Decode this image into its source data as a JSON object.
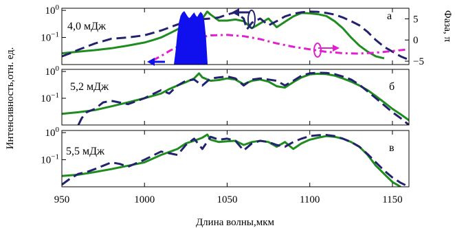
{
  "chart_data": {
    "type": "line",
    "xlabel": "Длина волны,мкм",
    "ylabel": "Интенсивность,отн. ед.",
    "xlim": [
      950,
      1160
    ],
    "x_ticks": [
      "950",
      "1000",
      "1050",
      "1100",
      "1150"
    ],
    "x_tick_values": [
      950,
      1000,
      1050,
      1100,
      1150
    ],
    "y_scale": "log",
    "ylim": [
      0.01,
      1.2
    ],
    "y_ticks": [
      "10^0",
      "10^-1"
    ],
    "y_tick_values": [
      1,
      0.1
    ],
    "colors": {
      "green": "#1e8c1e",
      "navy": "#22226e",
      "magenta": "#e020d0",
      "blue": "#1010ee"
    },
    "panels": [
      {
        "energy_label": "4,0 мДж",
        "panel_letter": "а",
        "right_axis": {
          "label": "Фаза, π",
          "ylim": [
            -5.8,
            7.5
          ],
          "ticks": [
            "5",
            "0",
            "−5"
          ],
          "tick_values": [
            5,
            0,
            -5
          ]
        },
        "series": [
          {
            "style": "solid",
            "color": "#1e8c1e",
            "x": [
              950,
              960,
              970,
              980,
              990,
              1000,
              1005,
              1010,
              1015,
              1020,
              1025,
              1030,
              1035,
              1038,
              1040,
              1045,
              1050,
              1055,
              1060,
              1065,
              1070,
              1075,
              1080,
              1085,
              1090,
              1095,
              1100,
              1105,
              1110,
              1115,
              1120,
              1125,
              1130,
              1135,
              1140,
              1145
            ],
            "y": [
              0.026,
              0.03,
              0.034,
              0.04,
              0.05,
              0.065,
              0.08,
              0.1,
              0.14,
              0.2,
              0.3,
              0.4,
              0.5,
              0.9,
              0.7,
              0.42,
              0.42,
              0.46,
              0.4,
              0.22,
              0.33,
              0.5,
              0.24,
              0.38,
              0.6,
              0.8,
              0.78,
              0.72,
              0.62,
              0.4,
              0.22,
              0.1,
              0.05,
              0.03,
              0.02,
              0.017
            ]
          },
          {
            "style": "dashed",
            "color": "#22226e",
            "x": [
              950,
              955,
              960,
              970,
              980,
              990,
              1000,
              1010,
              1020,
              1030,
              1040,
              1045,
              1050,
              1055,
              1060,
              1062,
              1065,
              1070,
              1075,
              1080,
              1085,
              1090,
              1095,
              1100,
              1105,
              1110,
              1115,
              1120,
              1125,
              1130,
              1135,
              1140,
              1145,
              1150,
              1155,
              1160
            ],
            "y": [
              0.02,
              0.026,
              0.035,
              0.06,
              0.09,
              0.1,
              0.12,
              0.18,
              0.3,
              0.45,
              0.5,
              0.55,
              0.7,
              0.85,
              0.5,
              0.2,
              0.35,
              0.5,
              0.28,
              0.4,
              0.6,
              0.75,
              0.85,
              0.9,
              0.88,
              0.8,
              0.7,
              0.55,
              0.4,
              0.28,
              0.16,
              0.08,
              0.045,
              0.03,
              0.02,
              0.015
            ]
          },
          {
            "style": "dashdot",
            "color": "#e020d0",
            "axis": "right",
            "x": [
              1005,
              1010,
              1015,
              1020,
              1025,
              1030,
              1035,
              1040,
              1050,
              1060,
              1070,
              1080,
              1090,
              1100,
              1110,
              1120,
              1130,
              1140,
              1150,
              1160
            ],
            "y": [
              -4.8,
              -3.8,
              -2.6,
              -1.6,
              -0.6,
              0.2,
              0.7,
              1.1,
              1.2,
              0.9,
              0.2,
              -0.8,
              -1.6,
              -2.2,
              -2.8,
              -3.1,
              -3.2,
              -3.0,
              -2.6,
              -2.2
            ]
          },
          {
            "style": "filled",
            "color": "#1010ee",
            "x": [
              1018,
              1019,
              1020,
              1021,
              1022,
              1023,
              1024,
              1025,
              1026,
              1027,
              1028,
              1029,
              1030,
              1031,
              1032,
              1033,
              1034,
              1035,
              1036,
              1037,
              1038
            ],
            "y": [
              0.01,
              0.03,
              0.12,
              0.35,
              0.62,
              0.8,
              0.9,
              0.72,
              0.58,
              0.5,
              0.56,
              0.68,
              0.8,
              0.62,
              0.55,
              0.7,
              0.85,
              0.72,
              0.4,
              0.1,
              0.01
            ]
          }
        ]
      },
      {
        "energy_label": "5,2 мДж",
        "panel_letter": "б",
        "series": [
          {
            "style": "solid",
            "color": "#1e8c1e",
            "x": [
              950,
              960,
              970,
              980,
              990,
              1000,
              1010,
              1015,
              1020,
              1025,
              1030,
              1033,
              1035,
              1040,
              1045,
              1050,
              1055,
              1060,
              1065,
              1070,
              1075,
              1080,
              1085,
              1090,
              1095,
              1100,
              1105,
              1110,
              1115,
              1120,
              1125,
              1130,
              1135,
              1140,
              1145,
              1150,
              1155,
              1160
            ],
            "y": [
              0.026,
              0.03,
              0.036,
              0.05,
              0.07,
              0.1,
              0.15,
              0.22,
              0.3,
              0.4,
              0.55,
              0.85,
              0.6,
              0.45,
              0.48,
              0.55,
              0.5,
              0.33,
              0.45,
              0.5,
              0.42,
              0.28,
              0.25,
              0.4,
              0.6,
              0.78,
              0.82,
              0.8,
              0.7,
              0.55,
              0.42,
              0.3,
              0.2,
              0.12,
              0.07,
              0.04,
              0.025,
              0.015
            ]
          },
          {
            "style": "dashed",
            "color": "#22226e",
            "x": [
              960,
              962,
              965,
              970,
              975,
              980,
              990,
              1000,
              1010,
              1015,
              1020,
              1025,
              1030,
              1035,
              1040,
              1045,
              1050,
              1055,
              1060,
              1065,
              1070,
              1075,
              1080,
              1085,
              1090,
              1095,
              1100,
              1105,
              1110,
              1115,
              1120,
              1125,
              1130,
              1135,
              1140,
              1145,
              1150,
              1155,
              1160
            ],
            "y": [
              0.01,
              0.018,
              0.03,
              0.04,
              0.07,
              0.08,
              0.06,
              0.1,
              0.2,
              0.15,
              0.3,
              0.45,
              0.5,
              0.3,
              0.55,
              0.6,
              0.65,
              0.55,
              0.3,
              0.5,
              0.55,
              0.5,
              0.45,
              0.3,
              0.45,
              0.7,
              0.85,
              0.9,
              0.88,
              0.8,
              0.65,
              0.5,
              0.32,
              0.18,
              0.1,
              0.055,
              0.03,
              0.018,
              0.01
            ]
          }
        ]
      },
      {
        "energy_label": "5,5 мДж",
        "panel_letter": "в",
        "series": [
          {
            "style": "solid",
            "color": "#1e8c1e",
            "x": [
              950,
              960,
              970,
              980,
              990,
              1000,
              1010,
              1020,
              1025,
              1030,
              1035,
              1038,
              1040,
              1045,
              1050,
              1055,
              1060,
              1065,
              1070,
              1075,
              1080,
              1085,
              1090,
              1095,
              1100,
              1105,
              1110,
              1115,
              1120,
              1125,
              1130,
              1135,
              1140,
              1145,
              1150,
              1155
            ],
            "y": [
              0.025,
              0.028,
              0.035,
              0.045,
              0.06,
              0.08,
              0.15,
              0.25,
              0.4,
              0.5,
              0.65,
              0.85,
              0.55,
              0.45,
              0.48,
              0.5,
              0.35,
              0.45,
              0.5,
              0.45,
              0.3,
              0.45,
              0.25,
              0.4,
              0.55,
              0.65,
              0.75,
              0.7,
              0.6,
              0.45,
              0.3,
              0.15,
              0.06,
              0.03,
              0.015,
              0.01
            ]
          },
          {
            "style": "dashed",
            "color": "#22226e",
            "x": [
              950,
              955,
              960,
              965,
              970,
              975,
              980,
              985,
              990,
              1000,
              1010,
              1020,
              1025,
              1030,
              1035,
              1040,
              1045,
              1050,
              1055,
              1060,
              1065,
              1070,
              1075,
              1080,
              1085,
              1090,
              1095,
              1100,
              1105,
              1110,
              1115,
              1120,
              1125,
              1130,
              1135,
              1140,
              1145,
              1150,
              1155,
              1160
            ],
            "y": [
              0.012,
              0.02,
              0.03,
              0.035,
              0.045,
              0.06,
              0.08,
              0.07,
              0.055,
              0.1,
              0.2,
              0.15,
              0.35,
              0.6,
              0.25,
              0.7,
              0.55,
              0.6,
              0.5,
              0.22,
              0.4,
              0.5,
              0.45,
              0.35,
              0.3,
              0.45,
              0.6,
              0.75,
              0.8,
              0.82,
              0.75,
              0.6,
              0.45,
              0.3,
              0.16,
              0.08,
              0.04,
              0.022,
              0.014,
              0.01
            ]
          }
        ]
      }
    ]
  }
}
